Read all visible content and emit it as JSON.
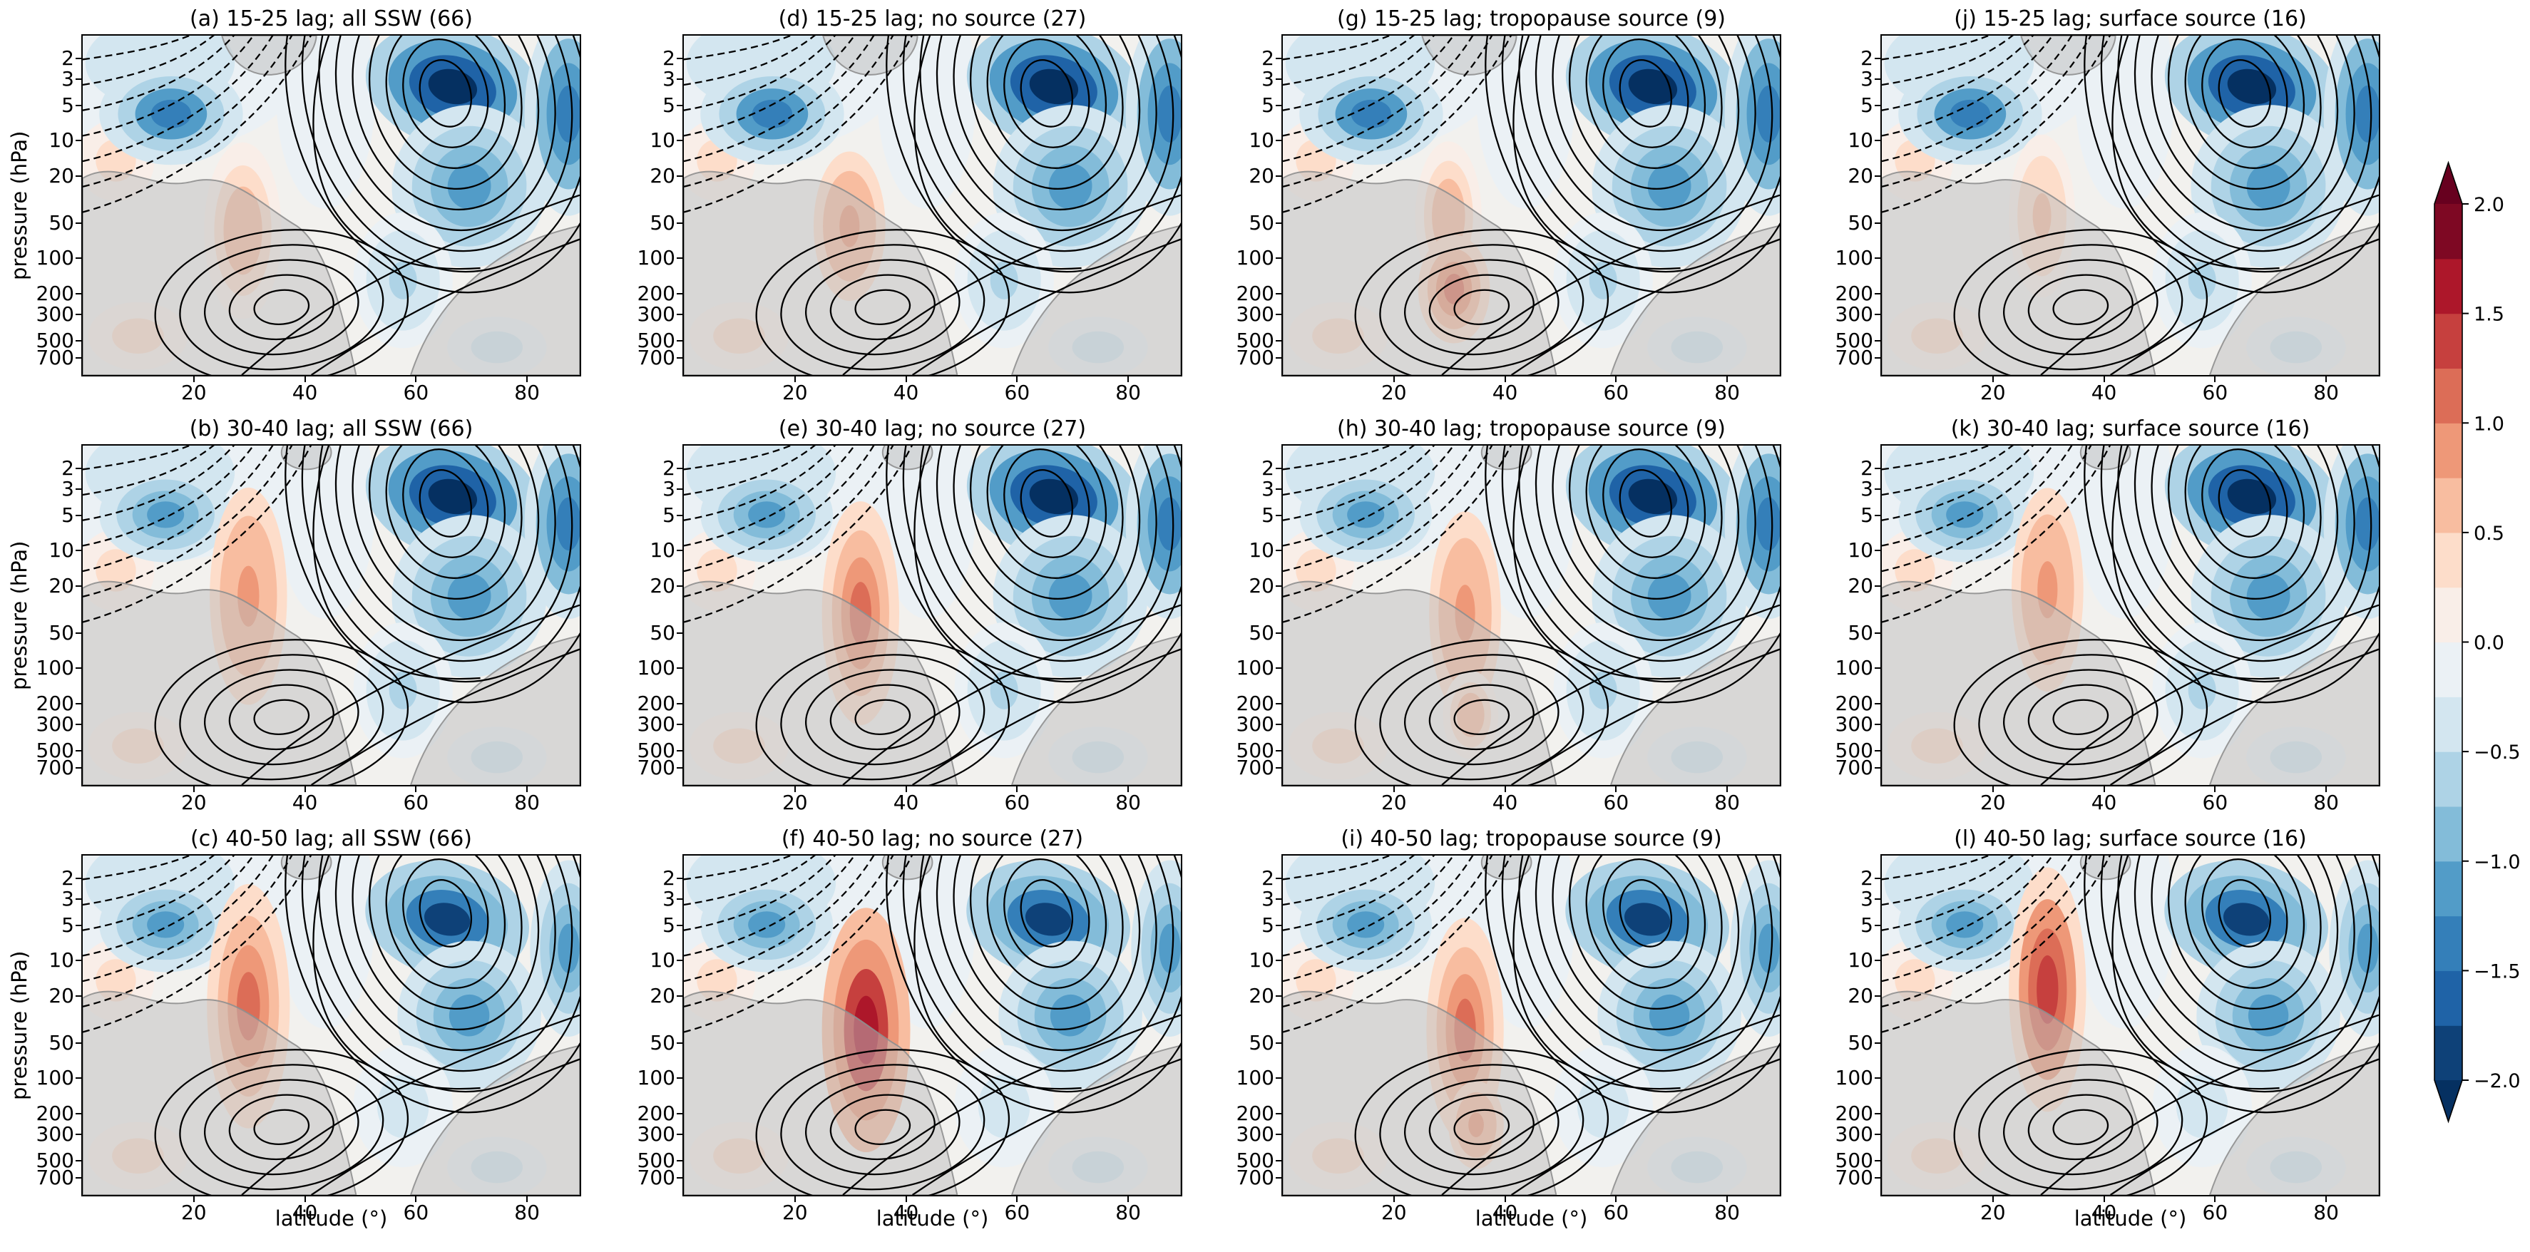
{
  "axes": {
    "xlabel": "latitude (°)",
    "ylabel": "pressure (hPa)",
    "x_ticks": [
      "20",
      "40",
      "60",
      "80"
    ],
    "x_tick_values": [
      20,
      40,
      60,
      80
    ],
    "x_range": [
      0,
      90
    ],
    "y_ticks": [
      "2",
      "3",
      "5",
      "10",
      "20",
      "50",
      "100",
      "200",
      "300",
      "500",
      "700"
    ],
    "y_tick_values": [
      2,
      3,
      5,
      10,
      20,
      50,
      100,
      200,
      300,
      500,
      700
    ],
    "y_scale": "log",
    "y_range_hPa": [
      1.3,
      1040
    ]
  },
  "colorbar": {
    "ticks": [
      "2.0",
      "1.5",
      "1.0",
      "0.5",
      "0.0",
      "−0.5",
      "−1.0",
      "−1.5",
      "−2.0"
    ],
    "tick_values": [
      2.0,
      1.5,
      1.0,
      0.5,
      0.0,
      -0.5,
      -1.0,
      -1.5,
      -2.0
    ],
    "vmin": -2.0,
    "vmax": 2.0,
    "level_step": 0.25,
    "extend": "both",
    "colors": [
      "#0e4178",
      "#1f63a7",
      "#347fb9",
      "#529cc8",
      "#83bcd9",
      "#aed3e6",
      "#d3e6f0",
      "#ebf1f5",
      "#f9eee8",
      "#fdddca",
      "#f8bda0",
      "#ee9878",
      "#dc6d57",
      "#c6403e",
      "#ad172a",
      "#7e0823"
    ],
    "arrow_bottom_color": "#053061",
    "arrow_top_color": "#67001f"
  },
  "chart_data": {
    "type": "heatmap",
    "subtype": "filled-contour latitude–pressure composites, 3 rows (lag windows) × 4 columns (SSW subsets)",
    "x": "latitude (°)",
    "y": "pressure (hPa), log scale, 1.3–1040 hPa, decreasing upward",
    "shading": "composite anomaly, diverging red–blue colormap, levels every 0.25 from −2.0 to +2.0 (extended arrows beyond)",
    "overlay_contours": "black contours = climatological zonal-mean zonal wind (solid = positive/westerly with closed maxima near 36°/300 hPa and 67°/3 hPa; dashed = negative/easterly fan in the low-latitude upper stratosphere); translucent gray shading masks non-significant regions with thin gray outlines",
    "grid": {
      "rows": 3,
      "cols": 4
    },
    "row_lags": [
      "15-25",
      "30-40",
      "40-50"
    ],
    "col_subsets": [
      "all SSW (66)",
      "no source (27)",
      "tropopause source (9)",
      "surface source (16)"
    ],
    "shared_features": [
      {
        "kind": "cold",
        "lat": 14,
        "hPa": 2.2,
        "rlat": 26,
        "rfy": 0.26,
        "peak": -0.45
      },
      {
        "kind": "cold",
        "lat": 44,
        "hPa": 4,
        "rlat": 9,
        "rfy": 0.34,
        "peak": -0.15
      },
      {
        "kind": "warm",
        "lat": 6,
        "hPa": 15,
        "rlat": 7,
        "rfy": 0.12,
        "peak": 0.35
      },
      {
        "kind": "warm",
        "lat": 10,
        "hPa": 480,
        "rlat": 9,
        "rfy": 0.1,
        "peak": 0.4
      },
      {
        "kind": "cold",
        "lat": 75,
        "hPa": 600,
        "rlat": 9,
        "rfy": 0.09,
        "peak": -0.35
      }
    ],
    "row_features": {
      "15-25": [
        {
          "kind": "cold",
          "lat": 16,
          "hPa": 6,
          "rlat": 13,
          "rfy": 0.15,
          "peak": -1.35
        },
        {
          "kind": "cold",
          "lat": 67,
          "hPa": 3.5,
          "rlat": 16,
          "rfy": 0.18,
          "peak": -2.2,
          "rot": 14
        },
        {
          "kind": "cold",
          "lat": 70,
          "hPa": 25,
          "rlat": 14,
          "rfy": 0.24,
          "peak": -1.2,
          "rot": 8
        },
        {
          "kind": "cold",
          "lat": 88,
          "hPa": 6,
          "rlat": 8,
          "rfy": 0.3,
          "peak": -1.5
        },
        {
          "kind": "cold",
          "lat": 58,
          "hPa": 160,
          "rlat": 9,
          "rfy": 0.2,
          "peak": -0.6
        }
      ],
      "30-40": [
        {
          "kind": "cold",
          "lat": 15,
          "hPa": 5,
          "rlat": 12,
          "rfy": 0.14,
          "peak": -1.05
        },
        {
          "kind": "cold",
          "lat": 67,
          "hPa": 3.5,
          "rlat": 16,
          "rfy": 0.18,
          "peak": -2.2,
          "rot": 14
        },
        {
          "kind": "cold",
          "lat": 70,
          "hPa": 25,
          "rlat": 14,
          "rfy": 0.24,
          "peak": -1.2,
          "rot": 8
        },
        {
          "kind": "cold",
          "lat": 88,
          "hPa": 6,
          "rlat": 8,
          "rfy": 0.28,
          "peak": -1.4
        },
        {
          "kind": "cold",
          "lat": 58,
          "hPa": 160,
          "rlat": 9,
          "rfy": 0.2,
          "peak": -0.55
        }
      ],
      "40-50": [
        {
          "kind": "cold",
          "lat": 15,
          "hPa": 5,
          "rlat": 12,
          "rfy": 0.14,
          "peak": -1.05
        },
        {
          "kind": "cold",
          "lat": 66,
          "hPa": 4.5,
          "rlat": 15,
          "rfy": 0.17,
          "peak": -1.8,
          "rot": 12
        },
        {
          "kind": "cold",
          "lat": 70,
          "hPa": 30,
          "rlat": 13,
          "rfy": 0.22,
          "peak": -1.1,
          "rot": 8
        },
        {
          "kind": "cold",
          "lat": 88,
          "hPa": 8,
          "rlat": 7,
          "rfy": 0.26,
          "peak": -1.2
        },
        {
          "kind": "cold",
          "lat": 58,
          "hPa": 180,
          "rlat": 9,
          "rfy": 0.18,
          "peak": -0.5
        }
      ]
    },
    "panels": [
      {
        "id": "a",
        "title": "(a) 15-25 lag; all SSW (66)",
        "lag_days": "15-25",
        "subset": "all SSW",
        "n_events": 66,
        "row": 0,
        "col": 0,
        "features": [
          {
            "kind": "warm",
            "lat": 29,
            "hPa": 60,
            "rlat": 7,
            "rfy": 0.26,
            "peak": 0.7
          }
        ]
      },
      {
        "id": "d",
        "title": "(d) 15-25 lag; no source (27)",
        "lag_days": "15-25",
        "subset": "no source",
        "n_events": 27,
        "row": 0,
        "col": 1,
        "features": [
          {
            "kind": "warm",
            "lat": 30,
            "hPa": 55,
            "rlat": 6.5,
            "rfy": 0.22,
            "peak": 0.95
          }
        ]
      },
      {
        "id": "g",
        "title": "(g) 15-25 lag; tropopause source (9)",
        "lag_days": "15-25",
        "subset": "tropopause source",
        "n_events": 9,
        "row": 0,
        "col": 2,
        "features": [
          {
            "kind": "warm",
            "lat": 30,
            "hPa": 45,
            "rlat": 6,
            "rfy": 0.22,
            "peak": 0.7
          },
          {
            "kind": "warm",
            "lat": 31,
            "hPa": 190,
            "rlat": 6.5,
            "rfy": 0.16,
            "peak": 1.2
          }
        ]
      },
      {
        "id": "j",
        "title": "(j) 15-25 lag; surface source (16)",
        "lag_days": "15-25",
        "subset": "surface source",
        "n_events": 16,
        "row": 0,
        "col": 3,
        "features": [
          {
            "kind": "warm",
            "lat": 29,
            "hPa": 45,
            "rlat": 6,
            "rfy": 0.24,
            "peak": 0.6
          }
        ]
      },
      {
        "id": "b",
        "title": "(b) 30-40 lag; all SSW (66)",
        "lag_days": "30-40",
        "subset": "all SSW",
        "n_events": 66,
        "row": 1,
        "col": 0,
        "features": [
          {
            "kind": "warm",
            "lat": 30,
            "hPa": 25,
            "rlat": 7,
            "rfy": 0.32,
            "peak": 0.95
          }
        ]
      },
      {
        "id": "e",
        "title": "(e) 30-40 lag; no source (27)",
        "lag_days": "30-40",
        "subset": "no source",
        "n_events": 27,
        "row": 1,
        "col": 1,
        "features": [
          {
            "kind": "warm",
            "lat": 32,
            "hPa": 35,
            "rlat": 7,
            "rfy": 0.33,
            "peak": 1.2
          }
        ]
      },
      {
        "id": "h",
        "title": "(h) 30-40 lag; tropopause source (9)",
        "lag_days": "30-40",
        "subset": "tropopause source",
        "n_events": 9,
        "row": 1,
        "col": 2,
        "features": [
          {
            "kind": "warm",
            "lat": 33,
            "hPa": 35,
            "rlat": 6.5,
            "rfy": 0.3,
            "peak": 0.95
          },
          {
            "kind": "warm",
            "lat": 34,
            "hPa": 260,
            "rlat": 5,
            "rfy": 0.13,
            "peak": 0.7
          }
        ]
      },
      {
        "id": "k",
        "title": "(k) 30-40 lag; surface source (16)",
        "lag_days": "30-40",
        "subset": "surface source",
        "n_events": 16,
        "row": 1,
        "col": 3,
        "features": [
          {
            "kind": "warm",
            "lat": 30,
            "hPa": 22,
            "rlat": 6.5,
            "rfy": 0.3,
            "peak": 0.95
          }
        ]
      },
      {
        "id": "c",
        "title": "(c) 40-50 lag; all SSW (66)",
        "lag_days": "40-50",
        "subset": "all SSW",
        "n_events": 66,
        "row": 2,
        "col": 0,
        "features": [
          {
            "kind": "warm",
            "lat": 30,
            "hPa": 25,
            "rlat": 7.5,
            "rfy": 0.36,
            "peak": 1.2
          }
        ]
      },
      {
        "id": "f",
        "title": "(f) 40-50 lag; no source (27)",
        "lag_days": "40-50",
        "subset": "no source",
        "n_events": 27,
        "row": 2,
        "col": 1,
        "features": [
          {
            "kind": "warm",
            "lat": 33,
            "hPa": 40,
            "rlat": 8,
            "rfy": 0.36,
            "peak": 1.7
          }
        ]
      },
      {
        "id": "i",
        "title": "(i) 40-50 lag; tropopause source (9)",
        "lag_days": "40-50",
        "subset": "tropopause source",
        "n_events": 9,
        "row": 2,
        "col": 2,
        "features": [
          {
            "kind": "warm",
            "lat": 33,
            "hPa": 40,
            "rlat": 7,
            "rfy": 0.33,
            "peak": 1.2
          },
          {
            "kind": "warm",
            "lat": 35,
            "hPa": 260,
            "rlat": 5,
            "rfy": 0.13,
            "peak": 0.95
          }
        ]
      },
      {
        "id": "l",
        "title": "(l) 40-50 lag; surface source (16)",
        "lag_days": "40-50",
        "subset": "surface source",
        "n_events": 16,
        "row": 2,
        "col": 3,
        "features": [
          {
            "kind": "warm",
            "lat": 30,
            "hPa": 18,
            "rlat": 7,
            "rfy": 0.36,
            "peak": 1.45
          }
        ]
      }
    ]
  }
}
